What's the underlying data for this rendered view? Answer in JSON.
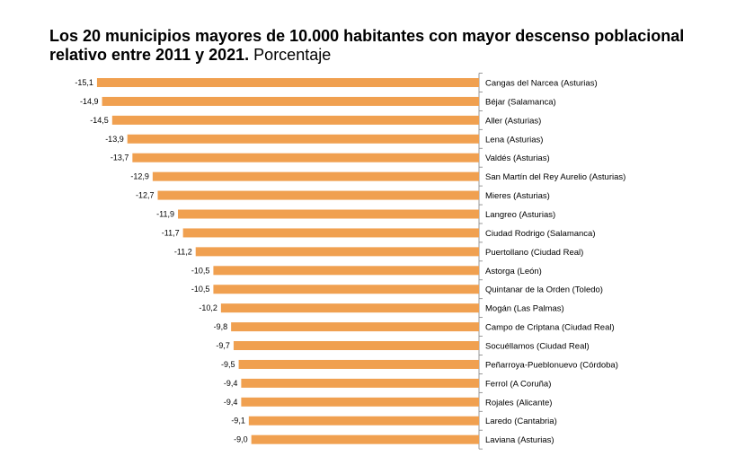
{
  "chart_data": {
    "type": "bar",
    "orientation": "horizontal",
    "title": "Los 20 municipios mayores de 10.000 habitantes con mayor descenso poblacional relativo entre 2011 y 2021.",
    "subtitle": "Porcentaje",
    "xlabel": "",
    "ylabel": "",
    "xlim": [
      -15.1,
      0
    ],
    "grid": false,
    "legend": "none",
    "bar_color": "#F0A050",
    "categories": [
      "Cangas del Narcea (Asturias)",
      "Béjar (Salamanca)",
      "Aller (Asturias)",
      "Lena (Asturias)",
      "Valdés (Asturias)",
      "San Martín del Rey Aurelio (Asturias)",
      "Mieres (Asturias)",
      "Langreo (Asturias)",
      "Ciudad Rodrigo (Salamanca)",
      "Puertollano (Ciudad Real)",
      "Astorga (León)",
      "Quintanar de la Orden (Toledo)",
      "Mogán (Las Palmas)",
      "Campo de Criptana (Ciudad Real)",
      "Socuéllamos (Ciudad Real)",
      "Peñarroya-Pueblonuevo (Córdoba)",
      "Ferrol (A Coruña)",
      "Rojales (Alicante)",
      "Laredo (Cantabria)",
      "Laviana (Asturias)"
    ],
    "values": [
      -15.1,
      -14.9,
      -14.5,
      -13.9,
      -13.7,
      -12.9,
      -12.7,
      -11.9,
      -11.7,
      -11.2,
      -10.5,
      -10.5,
      -10.2,
      -9.8,
      -9.7,
      -9.5,
      -9.4,
      -9.4,
      -9.1,
      -9.0
    ],
    "value_labels": [
      "-15,1",
      "-14,9",
      "-14,5",
      "-13,9",
      "-13,7",
      "-12,9",
      "-12,7",
      "-11,9",
      "-11,7",
      "-11,2",
      "-10,5",
      "-10,5",
      "-10,2",
      "-9,8",
      "-9,7",
      "-9,5",
      "-9,4",
      "-9,4",
      "-9,1",
      "-9,0"
    ]
  }
}
